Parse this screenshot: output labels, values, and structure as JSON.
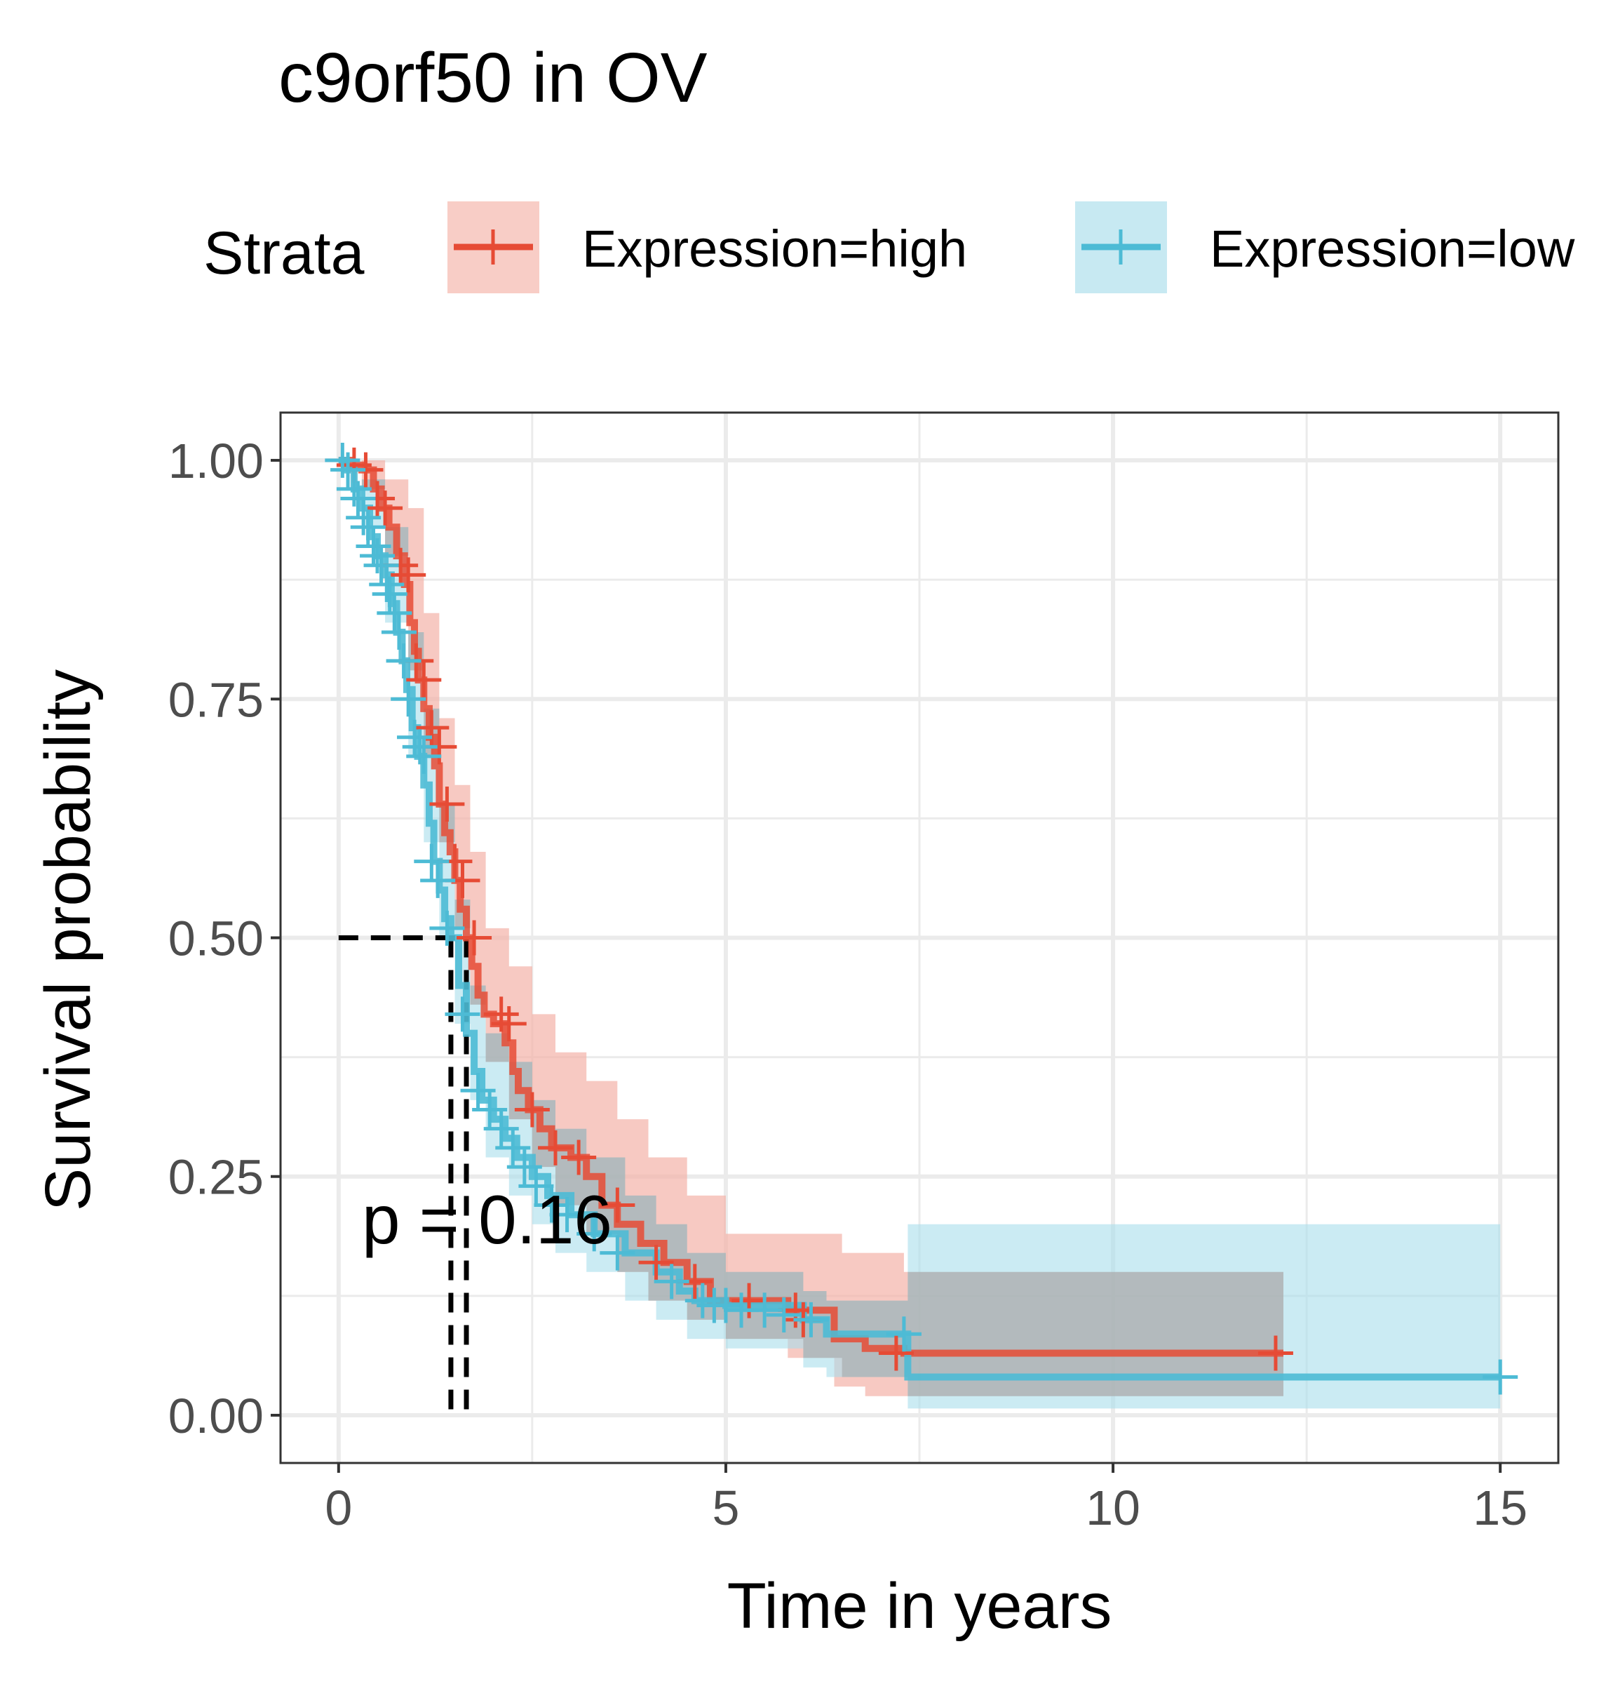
{
  "chart_data": {
    "type": "line",
    "title": "c9orf50 in OV",
    "xlabel": "Time in years",
    "ylabel": "Survival probability",
    "xlim": [
      -0.75,
      15.75
    ],
    "ylim": [
      -0.05,
      1.05
    ],
    "x_ticks": [
      0,
      5,
      10,
      15
    ],
    "x_tick_labels": [
      "0",
      "5",
      "10",
      "15"
    ],
    "y_ticks": [
      0,
      0.25,
      0.5,
      0.75,
      1.0
    ],
    "y_tick_labels": [
      "0.00",
      "0.25",
      "0.50",
      "0.75",
      "1.00"
    ],
    "grid": true,
    "legend": {
      "title": "Strata",
      "position": "top",
      "entries": [
        "Expression=high",
        "Expression=low"
      ]
    },
    "annotation": "p = 0.16",
    "median_survival": [
      {
        "series": "Expression=high",
        "x": 1.65,
        "y": 0.5
      },
      {
        "series": "Expression=low",
        "x": 1.45,
        "y": 0.5
      }
    ],
    "series": [
      {
        "name": "Expression=high",
        "color": "#E64B35",
        "ci_color": "#F4B2A8",
        "steps": [
          [
            0,
            1.0
          ],
          [
            0.15,
            0.995
          ],
          [
            0.3,
            0.99
          ],
          [
            0.45,
            0.97
          ],
          [
            0.55,
            0.95
          ],
          [
            0.65,
            0.93
          ],
          [
            0.75,
            0.9
          ],
          [
            0.85,
            0.87
          ],
          [
            0.92,
            0.83
          ],
          [
            0.98,
            0.8
          ],
          [
            1.03,
            0.77
          ],
          [
            1.1,
            0.74
          ],
          [
            1.17,
            0.71
          ],
          [
            1.24,
            0.68
          ],
          [
            1.3,
            0.64
          ],
          [
            1.37,
            0.61
          ],
          [
            1.44,
            0.59
          ],
          [
            1.5,
            0.56
          ],
          [
            1.57,
            0.53
          ],
          [
            1.65,
            0.5
          ],
          [
            1.72,
            0.47
          ],
          [
            1.8,
            0.44
          ],
          [
            1.88,
            0.42
          ],
          [
            2.0,
            0.41
          ],
          [
            2.15,
            0.39
          ],
          [
            2.25,
            0.36
          ],
          [
            2.32,
            0.34
          ],
          [
            2.45,
            0.32
          ],
          [
            2.6,
            0.3
          ],
          [
            2.75,
            0.28
          ],
          [
            3.0,
            0.27
          ],
          [
            3.2,
            0.25
          ],
          [
            3.4,
            0.22
          ],
          [
            3.6,
            0.2
          ],
          [
            3.9,
            0.18
          ],
          [
            4.2,
            0.16
          ],
          [
            4.5,
            0.14
          ],
          [
            4.8,
            0.12
          ],
          [
            5.8,
            0.11
          ],
          [
            6.4,
            0.08
          ],
          [
            6.8,
            0.07
          ],
          [
            7.3,
            0.065
          ],
          [
            12.2,
            0.065
          ]
        ],
        "ci_lower": [
          [
            0,
            1.0
          ],
          [
            0.3,
            0.97
          ],
          [
            0.6,
            0.9
          ],
          [
            0.9,
            0.78
          ],
          [
            1.1,
            0.69
          ],
          [
            1.3,
            0.6
          ],
          [
            1.5,
            0.51
          ],
          [
            1.7,
            0.43
          ],
          [
            1.9,
            0.37
          ],
          [
            2.2,
            0.31
          ],
          [
            2.5,
            0.26
          ],
          [
            2.8,
            0.22
          ],
          [
            3.2,
            0.19
          ],
          [
            3.6,
            0.15
          ],
          [
            4.0,
            0.12
          ],
          [
            4.5,
            0.1
          ],
          [
            5.0,
            0.08
          ],
          [
            5.8,
            0.06
          ],
          [
            6.4,
            0.03
          ],
          [
            6.8,
            0.02
          ],
          [
            12.2,
            0.02
          ]
        ],
        "ci_upper": [
          [
            0,
            1.0
          ],
          [
            0.3,
            1.0
          ],
          [
            0.6,
            0.98
          ],
          [
            0.9,
            0.95
          ],
          [
            1.1,
            0.84
          ],
          [
            1.3,
            0.73
          ],
          [
            1.5,
            0.66
          ],
          [
            1.7,
            0.59
          ],
          [
            1.9,
            0.51
          ],
          [
            2.2,
            0.47
          ],
          [
            2.5,
            0.42
          ],
          [
            2.8,
            0.38
          ],
          [
            3.2,
            0.35
          ],
          [
            3.6,
            0.31
          ],
          [
            4.0,
            0.27
          ],
          [
            4.5,
            0.23
          ],
          [
            5.0,
            0.19
          ],
          [
            6.5,
            0.17
          ],
          [
            7.3,
            0.15
          ],
          [
            12.2,
            0.15
          ]
        ],
        "censored": [
          [
            0.2,
            0.995
          ],
          [
            0.35,
            0.99
          ],
          [
            0.5,
            0.96
          ],
          [
            0.6,
            0.95
          ],
          [
            0.8,
            0.89
          ],
          [
            0.9,
            0.88
          ],
          [
            1.0,
            0.79
          ],
          [
            1.1,
            0.77
          ],
          [
            1.2,
            0.72
          ],
          [
            1.3,
            0.7
          ],
          [
            1.4,
            0.64
          ],
          [
            1.5,
            0.58
          ],
          [
            1.6,
            0.56
          ],
          [
            1.75,
            0.5
          ],
          [
            2.1,
            0.42
          ],
          [
            2.2,
            0.41
          ],
          [
            2.5,
            0.32
          ],
          [
            2.8,
            0.28
          ],
          [
            3.1,
            0.27
          ],
          [
            3.6,
            0.22
          ],
          [
            4.1,
            0.16
          ],
          [
            4.6,
            0.14
          ],
          [
            5.3,
            0.12
          ],
          [
            5.9,
            0.11
          ],
          [
            6.0,
            0.1
          ],
          [
            7.2,
            0.065
          ],
          [
            12.1,
            0.065
          ]
        ]
      },
      {
        "name": "Expression=low",
        "color": "#4DBBD5",
        "ci_color": "#A9DDEB",
        "steps": [
          [
            0,
            1.0
          ],
          [
            0.1,
            0.99
          ],
          [
            0.2,
            0.97
          ],
          [
            0.3,
            0.95
          ],
          [
            0.4,
            0.92
          ],
          [
            0.5,
            0.9
          ],
          [
            0.6,
            0.88
          ],
          [
            0.68,
            0.85
          ],
          [
            0.75,
            0.82
          ],
          [
            0.82,
            0.79
          ],
          [
            0.88,
            0.76
          ],
          [
            0.95,
            0.72
          ],
          [
            1.02,
            0.69
          ],
          [
            1.1,
            0.66
          ],
          [
            1.17,
            0.62
          ],
          [
            1.23,
            0.58
          ],
          [
            1.3,
            0.55
          ],
          [
            1.37,
            0.52
          ],
          [
            1.45,
            0.5
          ],
          [
            1.55,
            0.45
          ],
          [
            1.65,
            0.4
          ],
          [
            1.75,
            0.36
          ],
          [
            1.85,
            0.33
          ],
          [
            2.0,
            0.31
          ],
          [
            2.15,
            0.29
          ],
          [
            2.3,
            0.27
          ],
          [
            2.5,
            0.25
          ],
          [
            2.7,
            0.23
          ],
          [
            3.0,
            0.21
          ],
          [
            3.3,
            0.19
          ],
          [
            3.7,
            0.17
          ],
          [
            4.1,
            0.15
          ],
          [
            4.4,
            0.13
          ],
          [
            4.6,
            0.12
          ],
          [
            5.0,
            0.115
          ],
          [
            6.0,
            0.1
          ],
          [
            6.3,
            0.085
          ],
          [
            7.35,
            0.04
          ],
          [
            15.0,
            0.04
          ]
        ],
        "ci_lower": [
          [
            0,
            1.0
          ],
          [
            0.3,
            0.93
          ],
          [
            0.6,
            0.83
          ],
          [
            0.9,
            0.69
          ],
          [
            1.1,
            0.6
          ],
          [
            1.3,
            0.5
          ],
          [
            1.5,
            0.41
          ],
          [
            1.7,
            0.33
          ],
          [
            1.9,
            0.27
          ],
          [
            2.2,
            0.23
          ],
          [
            2.5,
            0.2
          ],
          [
            2.8,
            0.17
          ],
          [
            3.2,
            0.15
          ],
          [
            3.7,
            0.12
          ],
          [
            4.1,
            0.1
          ],
          [
            4.5,
            0.08
          ],
          [
            5.0,
            0.07
          ],
          [
            6.0,
            0.05
          ],
          [
            6.3,
            0.04
          ],
          [
            7.35,
            0.007
          ],
          [
            15.0,
            0.007
          ]
        ],
        "ci_upper": [
          [
            0,
            1.0
          ],
          [
            0.3,
            0.98
          ],
          [
            0.6,
            0.93
          ],
          [
            0.9,
            0.82
          ],
          [
            1.1,
            0.74
          ],
          [
            1.3,
            0.64
          ],
          [
            1.5,
            0.54
          ],
          [
            1.7,
            0.45
          ],
          [
            1.9,
            0.4
          ],
          [
            2.2,
            0.37
          ],
          [
            2.5,
            0.33
          ],
          [
            2.8,
            0.3
          ],
          [
            3.2,
            0.27
          ],
          [
            3.7,
            0.23
          ],
          [
            4.1,
            0.2
          ],
          [
            4.5,
            0.17
          ],
          [
            5.0,
            0.15
          ],
          [
            6.0,
            0.13
          ],
          [
            6.3,
            0.12
          ],
          [
            7.35,
            0.2
          ],
          [
            15.0,
            0.2
          ]
        ],
        "censored": [
          [
            0.05,
            1.0
          ],
          [
            0.12,
            0.99
          ],
          [
            0.2,
            0.97
          ],
          [
            0.25,
            0.96
          ],
          [
            0.32,
            0.94
          ],
          [
            0.38,
            0.93
          ],
          [
            0.45,
            0.91
          ],
          [
            0.5,
            0.9
          ],
          [
            0.55,
            0.89
          ],
          [
            0.62,
            0.87
          ],
          [
            0.66,
            0.86
          ],
          [
            0.72,
            0.84
          ],
          [
            0.78,
            0.82
          ],
          [
            0.84,
            0.79
          ],
          [
            0.9,
            0.75
          ],
          [
            0.98,
            0.71
          ],
          [
            1.05,
            0.7
          ],
          [
            1.1,
            0.69
          ],
          [
            1.2,
            0.58
          ],
          [
            1.28,
            0.56
          ],
          [
            1.4,
            0.51
          ],
          [
            1.6,
            0.42
          ],
          [
            1.8,
            0.34
          ],
          [
            1.95,
            0.32
          ],
          [
            2.1,
            0.3
          ],
          [
            2.25,
            0.28
          ],
          [
            2.4,
            0.26
          ],
          [
            2.55,
            0.24
          ],
          [
            2.75,
            0.22
          ],
          [
            2.95,
            0.21
          ],
          [
            3.3,
            0.19
          ],
          [
            3.6,
            0.17
          ],
          [
            4.3,
            0.14
          ],
          [
            4.7,
            0.12
          ],
          [
            4.85,
            0.115
          ],
          [
            5.0,
            0.115
          ],
          [
            5.2,
            0.11
          ],
          [
            5.5,
            0.11
          ],
          [
            5.75,
            0.105
          ],
          [
            6.1,
            0.1
          ],
          [
            7.3,
            0.085
          ],
          [
            15.0,
            0.04
          ]
        ]
      }
    ]
  }
}
